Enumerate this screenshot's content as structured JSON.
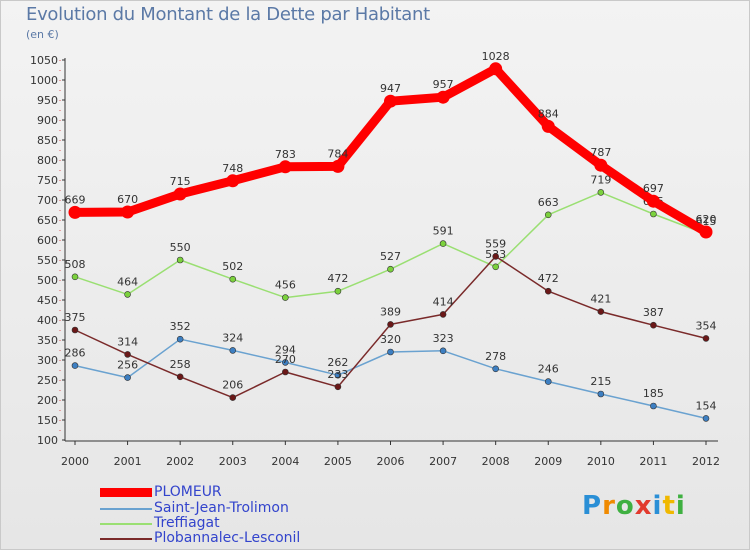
{
  "header": {
    "title": "Evolution du Montant de la Dette par Habitant",
    "unit": "(en €)"
  },
  "brand": {
    "logo_letters": [
      "P",
      "r",
      "o",
      "x",
      "i",
      "t",
      "i"
    ],
    "logo_colors": [
      "#2a8fd6",
      "#f08a00",
      "#3fb041",
      "#e23a2e",
      "#2a8fd6",
      "#f0b800",
      "#3fb041"
    ]
  },
  "chart_data": {
    "type": "line",
    "title": "Evolution du Montant de la Dette par Habitant",
    "subtitle": "(en €)",
    "xlabel": "",
    "ylabel": "",
    "x": [
      "2000",
      "2001",
      "2002",
      "2003",
      "2004",
      "2005",
      "2006",
      "2007",
      "2008",
      "2009",
      "2010",
      "2011",
      "2012"
    ],
    "ylim": [
      100,
      1050
    ],
    "yticks": [
      100,
      150,
      200,
      250,
      300,
      350,
      400,
      450,
      500,
      550,
      600,
      650,
      700,
      750,
      800,
      850,
      900,
      950,
      1000,
      1050
    ],
    "grid": false,
    "legend_position": "bottom-left",
    "series": [
      {
        "name": "PLOMEUR",
        "color": "#ff0000",
        "marker_color": "#ff0000",
        "values": [
          669,
          670,
          715,
          748,
          783,
          784,
          947,
          957,
          1028,
          884,
          787,
          697,
          620
        ]
      },
      {
        "name": "Saint-Jean-Trolimon",
        "color": "#6aa2d0",
        "marker_color": "#3d7fc2",
        "values": [
          286,
          256,
          352,
          324,
          294,
          262,
          320,
          323,
          278,
          246,
          215,
          185,
          154
        ]
      },
      {
        "name": "Treffiagat",
        "color": "#9adf72",
        "marker_color": "#7bd13d",
        "values": [
          508,
          464,
          550,
          502,
          456,
          472,
          527,
          591,
          533,
          663,
          719,
          665,
          615
        ]
      },
      {
        "name": "Plobannalec-Lesconil",
        "color": "#7a2a2a",
        "marker_color": "#6b1818",
        "values": [
          375,
          314,
          258,
          206,
          270,
          233,
          389,
          414,
          559,
          472,
          421,
          387,
          354
        ]
      }
    ]
  }
}
